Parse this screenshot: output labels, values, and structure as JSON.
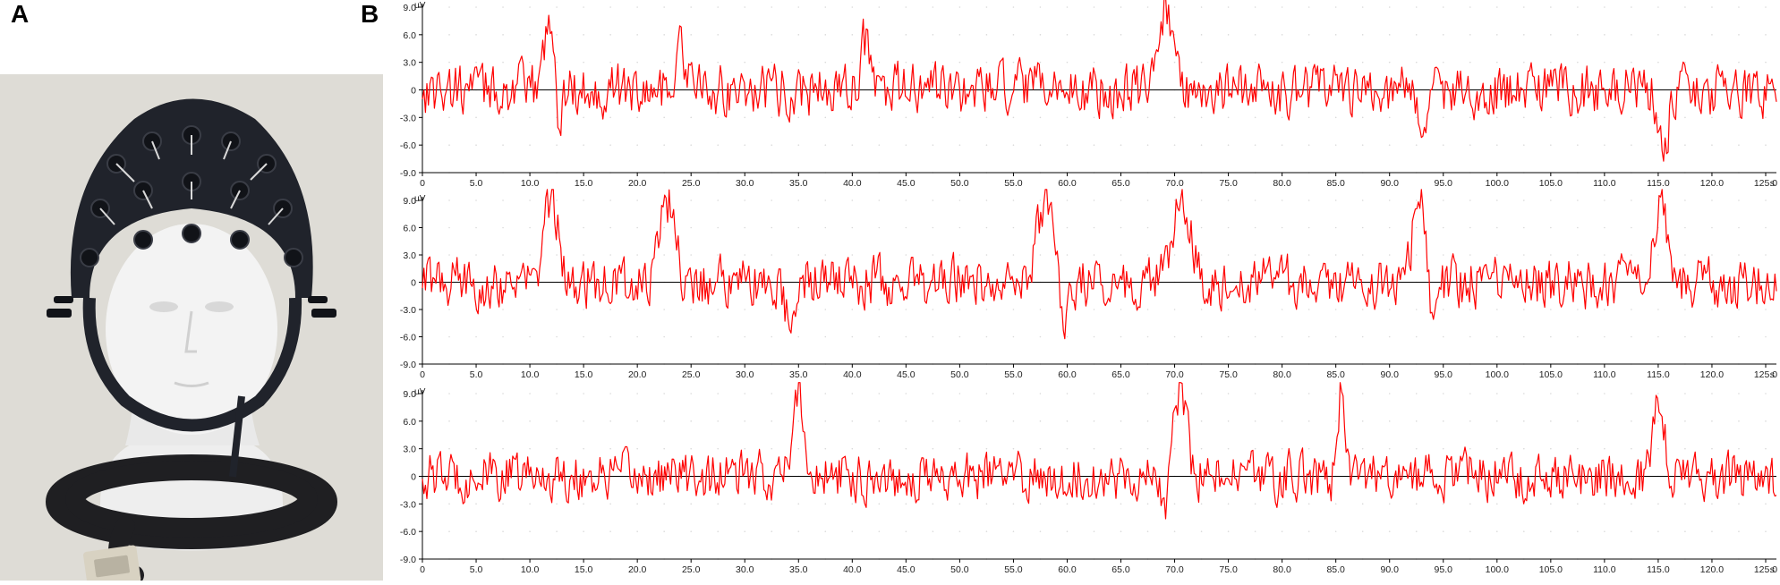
{
  "figure": {
    "panel_a_label": "A",
    "panel_b_label": "B"
  },
  "photo": {
    "subject": "EEG electrode cap on mannequin head with cable and connector",
    "colors": {
      "background": "#dedcd6",
      "cap": "#20232b",
      "head": "#f1f1f1",
      "cable": "#1f1f22",
      "connector": "#d8d2c2"
    }
  },
  "colors": {
    "trace": "#ff0000",
    "baseline": "#000000",
    "axis": "#000000",
    "grid_dot": "#d9d9d9"
  },
  "chart_data": [
    {
      "type": "line",
      "xlim": [
        0,
        126
      ],
      "ylim": [
        -9,
        9
      ],
      "x_ticks": [
        "0",
        "5.0",
        "10.0",
        "15.0",
        "20.0",
        "25.0",
        "30.0",
        "35.0",
        "40.0",
        "45.0",
        "50.0",
        "55.0",
        "60.0",
        "65.0",
        "70.0",
        "75.0",
        "80.0",
        "85.0",
        "90.0",
        "95.0",
        "100.0",
        "105.0",
        "110.0",
        "115.0",
        "120.0",
        "125.0"
      ],
      "x_unit": "s",
      "y_ticks": [
        "9.0",
        "6.0",
        "3.0",
        "0",
        "-3.0",
        "-6.0",
        "-9.0"
      ],
      "y_unit": "μV",
      "grid": "dotted",
      "series": [
        {
          "peaks": [
            {
              "x": 11.8,
              "y": 8.5,
              "w": 0.6
            },
            {
              "x": 24.0,
              "y": 4.3,
              "w": 0.8
            },
            {
              "x": 41.2,
              "y": 5.0,
              "w": 0.6
            },
            {
              "x": 69.2,
              "y": 8.8,
              "w": 0.9
            },
            {
              "x": 12.8,
              "y": -5.5,
              "w": 0.3
            },
            {
              "x": 93.3,
              "y": -5.0,
              "w": 0.6
            },
            {
              "x": 115.5,
              "y": -6.3,
              "w": 0.6
            }
          ],
          "noise": 1.6
        }
      ]
    },
    {
      "type": "line",
      "xlim": [
        0,
        126
      ],
      "ylim": [
        -9,
        9
      ],
      "x_ticks": [
        "0",
        "5.0",
        "10.0",
        "15.0",
        "20.0",
        "25.0",
        "30.0",
        "35.0",
        "40.0",
        "45.0",
        "50.0",
        "55.0",
        "60.0",
        "65.0",
        "70.0",
        "75.0",
        "80.0",
        "85.0",
        "90.0",
        "95.0",
        "100.0",
        "105.0",
        "110.0",
        "115.0",
        "120.0",
        "125.0"
      ],
      "x_unit": "s",
      "y_ticks": [
        "9.0",
        "6.0",
        "3.0",
        "0",
        "-3.0",
        "-6.0",
        "-9.0"
      ],
      "y_unit": "μV",
      "grid": "dotted",
      "series": [
        {
          "peaks": [
            {
              "x": 12.0,
              "y": 9.0,
              "w": 0.9
            },
            {
              "x": 22.8,
              "y": 9.0,
              "w": 0.9
            },
            {
              "x": 58.0,
              "y": 9.5,
              "w": 1.1
            },
            {
              "x": 70.8,
              "y": 9.5,
              "w": 1.1
            },
            {
              "x": 92.8,
              "y": 9.5,
              "w": 0.9
            },
            {
              "x": 115.2,
              "y": 9.0,
              "w": 0.9
            },
            {
              "x": 34.0,
              "y": -3.5,
              "w": 0.8
            },
            {
              "x": 59.8,
              "y": -5.5,
              "w": 0.5
            },
            {
              "x": 94.0,
              "y": -5.5,
              "w": 0.5
            }
          ],
          "noise": 1.6
        }
      ]
    },
    {
      "type": "line",
      "xlim": [
        0,
        126
      ],
      "ylim": [
        -9,
        9
      ],
      "x_ticks": [
        "0",
        "5.0",
        "10.0",
        "15.0",
        "20.0",
        "25.0",
        "30.0",
        "35.0",
        "40.0",
        "45.0",
        "50.0",
        "55.0",
        "60.0",
        "65.0",
        "70.0",
        "75.0",
        "80.0",
        "85.0",
        "90.0",
        "95.0",
        "100.0",
        "105.0",
        "110.0",
        "115.0",
        "120.0",
        "125.0"
      ],
      "x_unit": "s",
      "y_ticks": [
        "9.0",
        "6.0",
        "3.0",
        "0",
        "-3.0",
        "-6.0",
        "-9.0"
      ],
      "y_unit": "μV",
      "grid": "dotted",
      "series": [
        {
          "peaks": [
            {
              "x": 35.0,
              "y": 9.8,
              "w": 0.6
            },
            {
              "x": 70.5,
              "y": 9.8,
              "w": 0.8
            },
            {
              "x": 85.5,
              "y": 10.0,
              "w": 0.4
            },
            {
              "x": 115.0,
              "y": 9.5,
              "w": 0.7
            },
            {
              "x": 69.0,
              "y": -4.5,
              "w": 0.4
            }
          ],
          "noise": 1.5
        }
      ]
    }
  ]
}
